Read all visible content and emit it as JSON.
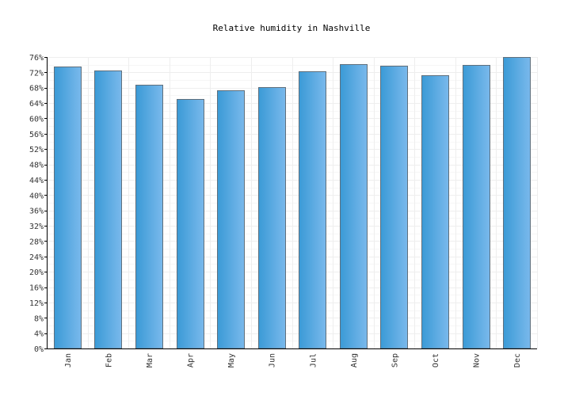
{
  "chart_data": {
    "type": "bar",
    "title": "Relative humidity in Nashville",
    "xlabel": "",
    "ylabel": "",
    "categories": [
      "Jan",
      "Feb",
      "Mar",
      "Apr",
      "May",
      "Jun",
      "Jul",
      "Aug",
      "Sep",
      "Oct",
      "Nov",
      "Dec"
    ],
    "values": [
      73.5,
      72.5,
      68.7,
      65.1,
      67.3,
      68.2,
      72.3,
      74.1,
      73.7,
      71.3,
      73.9,
      76.0
    ],
    "ylim": [
      0,
      76
    ],
    "yticks": [
      0,
      4,
      8,
      12,
      16,
      20,
      24,
      28,
      32,
      36,
      40,
      44,
      48,
      52,
      56,
      60,
      64,
      68,
      72,
      76
    ],
    "ytick_suffix": "%",
    "grid": true,
    "legend": "none",
    "colors": {
      "bar_dark": "#3a9ad6",
      "bar_light": "#7ab9ec",
      "bar_stroke": "#5f6f7c",
      "grid": "#eeeeee",
      "axis": "#000000"
    }
  }
}
